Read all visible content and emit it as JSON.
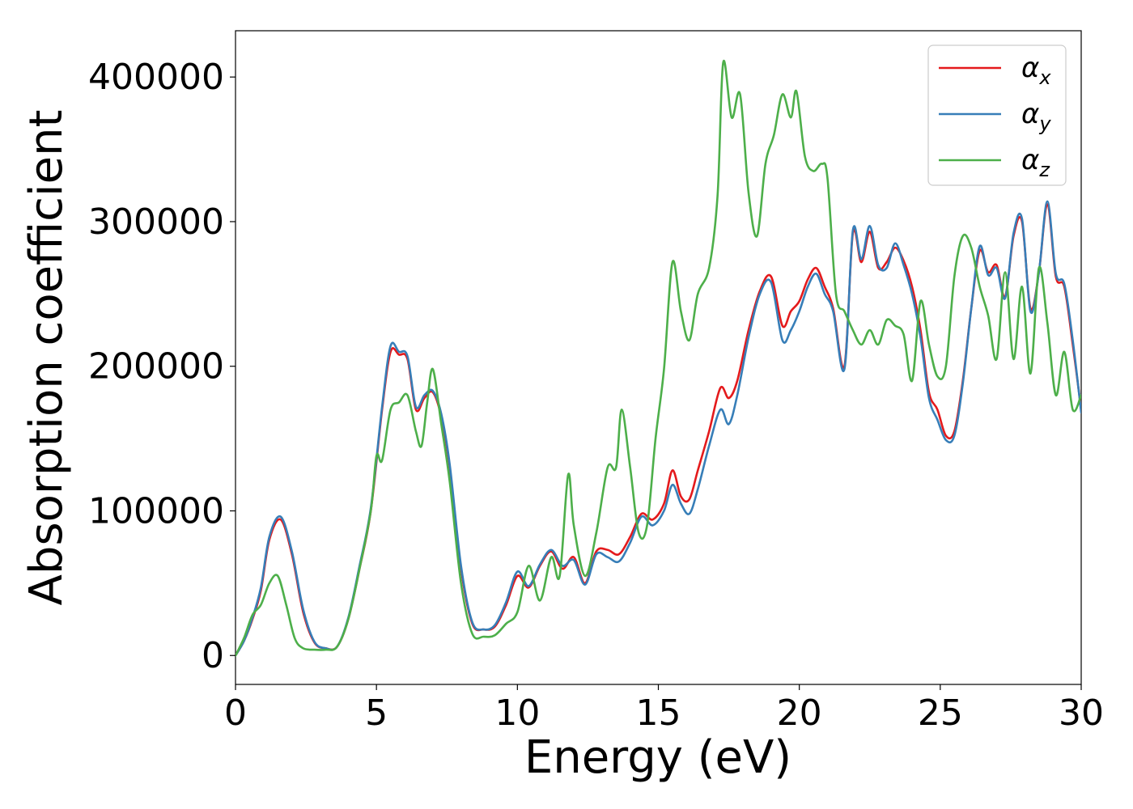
{
  "chart_data": {
    "type": "line",
    "title": "",
    "xlabel": "Energy (eV)",
    "ylabel": "Absorption coefficient",
    "xlim": [
      0,
      30
    ],
    "ylim": [
      -20000,
      432000
    ],
    "xticks": [
      0,
      5,
      10,
      15,
      20,
      25,
      30
    ],
    "xtick_labels": [
      "0",
      "5",
      "10",
      "15",
      "20",
      "25",
      "30"
    ],
    "yticks": [
      0,
      100000,
      200000,
      300000,
      400000
    ],
    "ytick_labels": [
      "0",
      "100000",
      "200000",
      "300000",
      "400000"
    ],
    "grid": false,
    "legend_position": "top-right",
    "series": [
      {
        "name": "αx",
        "legend_symbol": "α",
        "legend_subscript": "x",
        "color": "#e41a1c",
        "x": [
          0,
          0.3,
          0.6,
          0.9,
          1.2,
          1.6,
          2.0,
          2.4,
          2.8,
          3.2,
          3.6,
          4.0,
          4.4,
          4.8,
          5.2,
          5.5,
          5.8,
          6.1,
          6.4,
          6.7,
          7.0,
          7.3,
          7.6,
          8.0,
          8.4,
          8.8,
          9.2,
          9.6,
          10.0,
          10.4,
          10.8,
          11.2,
          11.6,
          12.0,
          12.4,
          12.8,
          13.2,
          13.6,
          14.0,
          14.4,
          14.8,
          15.2,
          15.5,
          15.8,
          16.1,
          16.4,
          16.8,
          17.2,
          17.5,
          17.8,
          18.2,
          18.6,
          19.0,
          19.4,
          19.7,
          20.0,
          20.3,
          20.6,
          20.9,
          21.2,
          21.6,
          21.9,
          22.2,
          22.5,
          22.8,
          23.1,
          23.4,
          23.7,
          24.0,
          24.3,
          24.6,
          24.9,
          25.2,
          25.5,
          25.8,
          26.1,
          26.4,
          26.7,
          27.0,
          27.3,
          27.6,
          27.9,
          28.2,
          28.5,
          28.8,
          29.1,
          29.4,
          29.7,
          30.0
        ],
        "values": [
          0,
          10000,
          25000,
          45000,
          80000,
          94000,
          70000,
          30000,
          9000,
          5000,
          6000,
          25000,
          60000,
          100000,
          170000,
          210000,
          208000,
          205000,
          170000,
          178000,
          182000,
          165000,
          130000,
          60000,
          22000,
          18000,
          20000,
          35000,
          55000,
          47000,
          62000,
          72000,
          60000,
          68000,
          50000,
          72000,
          73000,
          70000,
          82000,
          98000,
          94000,
          105000,
          128000,
          110000,
          108000,
          128000,
          155000,
          185000,
          178000,
          190000,
          225000,
          252000,
          262000,
          228000,
          238000,
          245000,
          260000,
          268000,
          255000,
          240000,
          200000,
          292000,
          272000,
          293000,
          268000,
          272000,
          282000,
          273000,
          255000,
          225000,
          182000,
          170000,
          152000,
          155000,
          190000,
          240000,
          280000,
          265000,
          270000,
          248000,
          290000,
          300000,
          240000,
          265000,
          312000,
          262000,
          255000,
          215000,
          170000
        ]
      },
      {
        "name": "αy",
        "legend_symbol": "α",
        "legend_subscript": "y",
        "color": "#377eb8",
        "x": [
          0,
          0.3,
          0.6,
          0.9,
          1.2,
          1.6,
          2.0,
          2.4,
          2.8,
          3.2,
          3.6,
          4.0,
          4.4,
          4.8,
          5.2,
          5.5,
          5.8,
          6.1,
          6.4,
          6.7,
          7.0,
          7.3,
          7.6,
          8.0,
          8.4,
          8.8,
          9.2,
          9.6,
          10.0,
          10.4,
          10.8,
          11.2,
          11.6,
          12.0,
          12.4,
          12.8,
          13.2,
          13.6,
          14.0,
          14.4,
          14.8,
          15.2,
          15.5,
          15.8,
          16.1,
          16.4,
          16.8,
          17.2,
          17.5,
          17.8,
          18.2,
          18.6,
          19.0,
          19.4,
          19.7,
          20.0,
          20.3,
          20.6,
          20.9,
          21.2,
          21.6,
          21.9,
          22.2,
          22.5,
          22.8,
          23.1,
          23.4,
          23.7,
          24.0,
          24.3,
          24.6,
          24.9,
          25.2,
          25.5,
          25.8,
          26.1,
          26.4,
          26.7,
          27.0,
          27.3,
          27.6,
          27.9,
          28.2,
          28.5,
          28.8,
          29.1,
          29.4,
          29.7,
          30.0
        ],
        "values": [
          0,
          10000,
          26000,
          47000,
          82000,
          96000,
          72000,
          32000,
          9500,
          5000,
          6000,
          26000,
          62000,
          102000,
          172000,
          214000,
          210000,
          207000,
          172000,
          180000,
          183000,
          167000,
          132000,
          62000,
          23000,
          18000,
          21000,
          37000,
          58000,
          48000,
          63000,
          73000,
          62000,
          66000,
          49000,
          70000,
          68000,
          65000,
          78000,
          96000,
          90000,
          100000,
          118000,
          105000,
          98000,
          115000,
          145000,
          170000,
          160000,
          180000,
          220000,
          250000,
          258000,
          218000,
          225000,
          238000,
          255000,
          264000,
          250000,
          238000,
          198000,
          294000,
          274000,
          297000,
          270000,
          268000,
          285000,
          270000,
          250000,
          220000,
          178000,
          163000,
          149000,
          152000,
          188000,
          240000,
          283000,
          263000,
          268000,
          247000,
          292000,
          302000,
          238000,
          265000,
          314000,
          264000,
          257000,
          218000,
          168000
        ]
      },
      {
        "name": "αz",
        "legend_symbol": "α",
        "legend_subscript": "z",
        "color": "#4daf4a",
        "x": [
          0,
          0.3,
          0.6,
          0.9,
          1.2,
          1.5,
          1.8,
          2.1,
          2.4,
          2.8,
          3.2,
          3.6,
          4.0,
          4.4,
          4.8,
          5.0,
          5.2,
          5.5,
          5.8,
          6.1,
          6.4,
          6.6,
          6.8,
          7.0,
          7.3,
          7.6,
          8.0,
          8.4,
          8.8,
          9.2,
          9.6,
          10.0,
          10.4,
          10.8,
          11.2,
          11.5,
          11.8,
          12.0,
          12.4,
          12.8,
          13.2,
          13.5,
          13.7,
          14.0,
          14.3,
          14.6,
          14.9,
          15.2,
          15.5,
          15.8,
          16.1,
          16.4,
          16.8,
          17.1,
          17.3,
          17.6,
          17.9,
          18.2,
          18.5,
          18.8,
          19.1,
          19.4,
          19.7,
          19.9,
          20.2,
          20.5,
          20.8,
          21.0,
          21.3,
          21.6,
          21.9,
          22.2,
          22.5,
          22.8,
          23.1,
          23.4,
          23.7,
          24.0,
          24.3,
          24.6,
          24.9,
          25.2,
          25.5,
          25.8,
          26.1,
          26.4,
          26.7,
          27.0,
          27.3,
          27.6,
          27.9,
          28.2,
          28.5,
          28.8,
          29.1,
          29.4,
          29.7,
          30.0
        ],
        "values": [
          0,
          12000,
          28000,
          35000,
          50000,
          55000,
          35000,
          12000,
          5000,
          4000,
          4000,
          6000,
          25000,
          60000,
          100000,
          138000,
          135000,
          170000,
          175000,
          180000,
          155000,
          145000,
          175000,
          198000,
          160000,
          120000,
          50000,
          15000,
          13000,
          14000,
          22000,
          30000,
          62000,
          38000,
          68000,
          55000,
          125000,
          90000,
          55000,
          85000,
          130000,
          130000,
          170000,
          130000,
          85000,
          90000,
          150000,
          198000,
          272000,
          238000,
          218000,
          250000,
          268000,
          318000,
          410000,
          372000,
          388000,
          320000,
          290000,
          340000,
          360000,
          388000,
          372000,
          390000,
          345000,
          335000,
          340000,
          330000,
          250000,
          238000,
          225000,
          215000,
          225000,
          215000,
          232000,
          228000,
          222000,
          190000,
          245000,
          215000,
          193000,
          200000,
          262000,
          290000,
          282000,
          255000,
          235000,
          205000,
          265000,
          205000,
          255000,
          195000,
          268000,
          230000,
          180000,
          210000,
          170000,
          180000
        ]
      }
    ]
  }
}
